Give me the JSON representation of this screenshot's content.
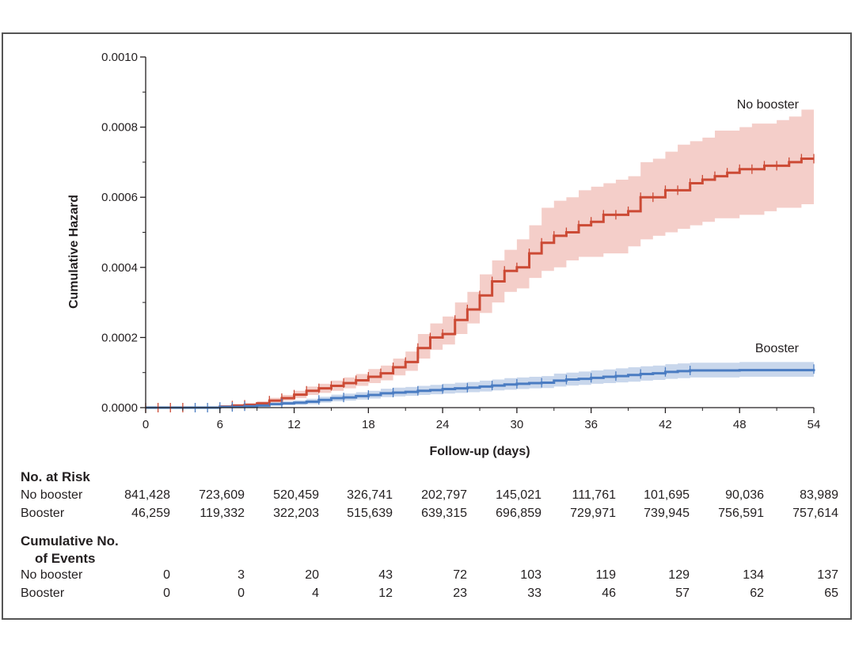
{
  "colors": {
    "no_booster_line": "#cc4a35",
    "no_booster_band": "#f2c6bf",
    "booster_line": "#4a7cc2",
    "booster_band": "#c3d3ea",
    "axis": "#231f20"
  },
  "chart_data": {
    "type": "line",
    "subtype": "kaplan-meier cumulative hazard step plot",
    "xlabel": "Follow-up (days)",
    "ylabel": "Cumulative Hazard",
    "xlim": [
      0,
      54
    ],
    "ylim": [
      0,
      0.001
    ],
    "x_ticks": [
      "0",
      "6",
      "12",
      "18",
      "24",
      "30",
      "36",
      "42",
      "48",
      "54"
    ],
    "y_ticks": [
      "0.0000",
      "0.0002",
      "0.0004",
      "0.0006",
      "0.0008",
      "0.0010"
    ],
    "series": [
      {
        "name": "No booster",
        "label": "No booster",
        "x": [
          0,
          6,
          7,
          8,
          9,
          10,
          11,
          12,
          13,
          14,
          15,
          16,
          17,
          18,
          19,
          20,
          21,
          22,
          23,
          24,
          25,
          26,
          27,
          28,
          29,
          30,
          31,
          32,
          33,
          34,
          35,
          36,
          37,
          38,
          39,
          40,
          41,
          42,
          43,
          44,
          45,
          46,
          47,
          48,
          49,
          50,
          51,
          52,
          53,
          54
        ],
        "y": [
          0,
          3e-06,
          6e-06,
          8e-06,
          1.2e-05,
          2e-05,
          2.7e-05,
          3.7e-05,
          4.8e-05,
          5.5e-05,
          6.2e-05,
          7e-05,
          7.8e-05,
          8.8e-05,
          9.8e-05,
          0.000115,
          0.00013,
          0.00017,
          0.0002,
          0.00021,
          0.00025,
          0.00028,
          0.00032,
          0.00036,
          0.00039,
          0.0004,
          0.00044,
          0.00047,
          0.00049,
          0.0005,
          0.00052,
          0.00053,
          0.00055,
          0.00055,
          0.00056,
          0.0006,
          0.0006,
          0.00062,
          0.00062,
          0.00064,
          0.00065,
          0.00066,
          0.00067,
          0.00068,
          0.00068,
          0.00069,
          0.00069,
          0.0007,
          0.00071,
          0.00071
        ],
        "lower": [
          0,
          1e-06,
          3e-06,
          5e-06,
          8e-06,
          1.4e-05,
          2e-05,
          2.7e-05,
          3.6e-05,
          4.2e-05,
          4.8e-05,
          5.5e-05,
          6.2e-05,
          7e-05,
          7.8e-05,
          9.2e-05,
          0.000105,
          0.00014,
          0.000165,
          0.00018,
          0.00021,
          0.00024,
          0.00027,
          0.0003,
          0.00033,
          0.00034,
          0.00037,
          0.00039,
          0.0004,
          0.00042,
          0.00043,
          0.00043,
          0.00044,
          0.00044,
          0.00046,
          0.00048,
          0.00049,
          0.0005,
          0.00051,
          0.00052,
          0.00053,
          0.00054,
          0.00054,
          0.00055,
          0.00055,
          0.00056,
          0.00057,
          0.00057,
          0.00058,
          0.00058
        ],
        "upper": [
          0,
          6e-06,
          1e-05,
          1.3e-05,
          1.8e-05,
          2.8e-05,
          3.6e-05,
          4.8e-05,
          6e-05,
          6.8e-05,
          7.7e-05,
          8.6e-05,
          9.6e-05,
          0.00011,
          0.00012,
          0.00014,
          0.00016,
          0.00021,
          0.00024,
          0.00026,
          0.0003,
          0.00033,
          0.00038,
          0.00042,
          0.00045,
          0.00048,
          0.00052,
          0.00057,
          0.00059,
          0.0006,
          0.00062,
          0.00063,
          0.00064,
          0.00065,
          0.00066,
          0.0007,
          0.00071,
          0.00073,
          0.00075,
          0.00076,
          0.00077,
          0.00079,
          0.00079,
          0.0008,
          0.00081,
          0.00081,
          0.00082,
          0.00083,
          0.00085,
          0.00085
        ],
        "censor_x": [
          0,
          1,
          2,
          3,
          7,
          8,
          10,
          11,
          12,
          13,
          14,
          15,
          16,
          17,
          18,
          19,
          20,
          21,
          22,
          23,
          24,
          25,
          26,
          27,
          28,
          29,
          30,
          31,
          32,
          33,
          34,
          35,
          36,
          37,
          38,
          39,
          40,
          41,
          42,
          43,
          44,
          45,
          46,
          47,
          48,
          49,
          50,
          51,
          52,
          53,
          54
        ]
      },
      {
        "name": "Booster",
        "label": "Booster",
        "x": [
          0,
          6,
          8,
          9,
          10,
          11,
          12,
          13,
          14,
          15,
          16,
          17,
          18,
          19,
          20,
          21,
          22,
          23,
          24,
          25,
          26,
          27,
          28,
          29,
          30,
          31,
          32,
          33,
          34,
          35,
          36,
          37,
          38,
          39,
          40,
          41,
          42,
          43,
          44,
          48,
          54
        ],
        "y": [
          0,
          2e-06,
          4e-06,
          6e-06,
          1e-05,
          1.2e-05,
          1.4e-05,
          1.7e-05,
          2.2e-05,
          2.7e-05,
          2.9e-05,
          3.3e-05,
          3.6e-05,
          4.1e-05,
          4.3e-05,
          4.5e-05,
          4.8e-05,
          5e-05,
          5.3e-05,
          5.5e-05,
          5.7e-05,
          6e-05,
          6.3e-05,
          6.6e-05,
          6.8e-05,
          7e-05,
          7.1e-05,
          7.7e-05,
          8e-05,
          8.2e-05,
          8.5e-05,
          8.8e-05,
          9e-05,
          9.3e-05,
          9.6e-05,
          9.8e-05,
          0.000102,
          0.000104,
          0.000106,
          0.000107,
          0.00011
        ],
        "lower": [
          0,
          1e-06,
          2e-06,
          3e-06,
          6e-06,
          7e-06,
          8e-06,
          1e-05,
          1.4e-05,
          1.8e-05,
          2e-05,
          2.3e-05,
          2.6e-05,
          3e-05,
          3.2e-05,
          3.4e-05,
          3.6e-05,
          3.8e-05,
          4e-05,
          4.2e-05,
          4.4e-05,
          4.6e-05,
          4.9e-05,
          5.1e-05,
          5.3e-05,
          5.5e-05,
          5.6e-05,
          6e-05,
          6.3e-05,
          6.5e-05,
          6.8e-05,
          7e-05,
          7.2e-05,
          7.4e-05,
          7.7e-05,
          7.9e-05,
          8.2e-05,
          8.4e-05,
          8.6e-05,
          8.8e-05,
          9.1e-05
        ],
        "upper": [
          0,
          4e-06,
          7e-06,
          1e-05,
          1.5e-05,
          1.8e-05,
          2.1e-05,
          2.5e-05,
          3.1e-05,
          3.7e-05,
          4e-05,
          4.4e-05,
          4.8e-05,
          5.4e-05,
          5.7e-05,
          5.9e-05,
          6.2e-05,
          6.5e-05,
          6.8e-05,
          7.1e-05,
          7.3e-05,
          7.7e-05,
          8e-05,
          8.4e-05,
          8.6e-05,
          8.8e-05,
          9e-05,
          9.7e-05,
          0.0001,
          0.000103,
          0.000106,
          0.000109,
          0.000112,
          0.000115,
          0.000118,
          0.00012,
          0.000124,
          0.000126,
          0.000128,
          0.00013,
          0.000132
        ],
        "censor_x": [
          4,
          5,
          6,
          7,
          8,
          11,
          14,
          16,
          18,
          20,
          22,
          24,
          26,
          28,
          30,
          32,
          34,
          36,
          38,
          40,
          42,
          44,
          54
        ]
      }
    ]
  },
  "risk_table": {
    "heading": "No. at Risk",
    "rows": [
      {
        "label": "No booster",
        "values": [
          "841,428",
          "723,609",
          "520,459",
          "326,741",
          "202,797",
          "145,021",
          "111,761",
          "101,695",
          "90,036",
          "83,989"
        ]
      },
      {
        "label": "Booster",
        "values": [
          "46,259",
          "119,332",
          "322,203",
          "515,639",
          "639,315",
          "696,859",
          "729,971",
          "739,945",
          "756,591",
          "757,614"
        ]
      }
    ]
  },
  "events_table": {
    "heading_line1": "Cumulative No.",
    "heading_line2": "of Events",
    "rows": [
      {
        "label": "No booster",
        "values": [
          "0",
          "3",
          "20",
          "43",
          "72",
          "103",
          "119",
          "129",
          "134",
          "137"
        ]
      },
      {
        "label": "Booster",
        "values": [
          "0",
          "0",
          "4",
          "12",
          "23",
          "33",
          "46",
          "57",
          "62",
          "65"
        ]
      }
    ]
  }
}
